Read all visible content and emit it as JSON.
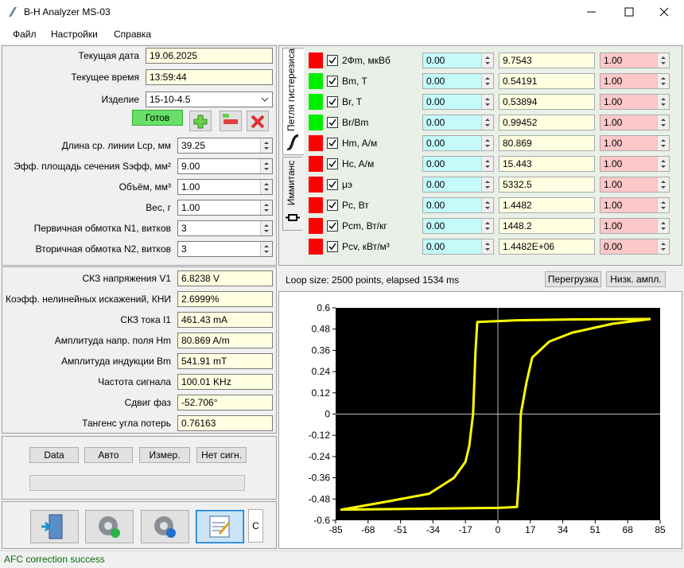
{
  "window": {
    "title": "B-H Analyzer MS-03"
  },
  "menu": [
    "Файл",
    "Настройки",
    "Справка"
  ],
  "settings": {
    "rows": [
      {
        "label": "Текущая дата",
        "value": "19.06.2025"
      },
      {
        "label": "Текущее время",
        "value": "13:59:44"
      },
      {
        "label": "Изделие",
        "value": "15-10-4.5"
      }
    ],
    "ready": "Готов",
    "spins": [
      {
        "label": "Длина ср. линии Lср, мм",
        "value": "39.25"
      },
      {
        "label": "Эфф. площадь сечения Sэфф, мм²",
        "value": "9.00"
      },
      {
        "label": "Объём, мм³",
        "value": "1.00"
      },
      {
        "label": "Вес, г",
        "value": "1.00"
      },
      {
        "label": "Первичная обмотка N1, витков",
        "value": "3"
      },
      {
        "label": "Вторичная обмотка N2, витков",
        "value": "3"
      }
    ]
  },
  "measurements": [
    {
      "label": "СКЗ напряжения V1",
      "value": "6.8238 V"
    },
    {
      "label": "Коэфф. нелинейных искажений, КНИ",
      "value": "2.6999%"
    },
    {
      "label": "СКЗ тока I1",
      "value": "461.43 mA"
    },
    {
      "label": "Амплитуда напр. поля Hm",
      "value": "80.869 A/m"
    },
    {
      "label": "Амплитуда индукции Bm",
      "value": "541.91 mT"
    },
    {
      "label": "Частота сигнала",
      "value": "100.01 KHz"
    },
    {
      "label": "Сдвиг фаз",
      "value": "-52.706°"
    },
    {
      "label": "Тангенс угла потерь",
      "value": "0.76163"
    }
  ],
  "controls": {
    "buttons": [
      "Data",
      "Авто",
      "Измер.",
      "Нет сигн."
    ],
    "c_button": "C"
  },
  "tabs": [
    "Петля гистерезиса",
    "Иммитанс"
  ],
  "loop_params": [
    {
      "color": "#ff0000",
      "label": "2Фm, мкВб",
      "min": "0.00",
      "value": "9.7543",
      "max": "1.00"
    },
    {
      "color": "#00ee00",
      "label": "Bm, T",
      "min": "0.00",
      "value": "0.54191",
      "max": "1.00"
    },
    {
      "color": "#00ee00",
      "label": "Br, T",
      "min": "0.00",
      "value": "0.53894",
      "max": "1.00"
    },
    {
      "color": "#00ee00",
      "label": "Br/Bm",
      "min": "0.00",
      "value": "0.99452",
      "max": "1.00"
    },
    {
      "color": "#ff0000",
      "label": "Hm, A/м",
      "min": "0.00",
      "value": "80.869",
      "max": "1.00"
    },
    {
      "color": "#ff0000",
      "label": "Hc, A/м",
      "min": "0.00",
      "value": "15.443",
      "max": "1.00"
    },
    {
      "color": "#ff0000",
      "label": "μэ",
      "min": "0.00",
      "value": "5332.5",
      "max": "1.00"
    },
    {
      "color": "#ff0000",
      "label": "Pc, Вт",
      "min": "0.00",
      "value": "1.4482",
      "max": "1.00"
    },
    {
      "color": "#ff0000",
      "label": "Pcm, Вт/кг",
      "min": "0.00",
      "value": "1448.2",
      "max": "1.00"
    },
    {
      "color": "#ff0000",
      "label": "Pcv, кВт/м³",
      "min": "0.00",
      "value": "1.4482E+06",
      "max": "0.00"
    }
  ],
  "loop_status": {
    "text": "Loop size: 2500 points, elapsed 1534 ms",
    "buttons": [
      "Перегрузка",
      "Низк. ампл."
    ]
  },
  "chart_data": {
    "type": "line",
    "x": [
      80,
      40,
      10,
      -10.8,
      -11.7,
      -13,
      -15,
      -17,
      -23,
      -36,
      -61,
      -82,
      -40,
      0,
      10,
      11,
      12,
      15,
      18,
      27,
      39,
      60,
      80
    ],
    "series": [
      {
        "color": "#ffff00",
        "values": [
          0.537,
          0.535,
          0.53,
          0.52,
          0.36,
          0,
          -0.18,
          -0.27,
          -0.36,
          -0.45,
          -0.5,
          -0.54,
          -0.535,
          -0.53,
          -0.525,
          -0.36,
          0,
          0.18,
          0.32,
          0.41,
          0.46,
          0.51,
          0.537
        ]
      }
    ],
    "xlim": [
      -85,
      85
    ],
    "ylim": [
      -0.6,
      0.6
    ],
    "xticks": [
      -85,
      -68,
      -51,
      -34,
      -17,
      0,
      17,
      34,
      51,
      68,
      85
    ],
    "yticks": [
      -0.6,
      -0.48,
      -0.36,
      -0.24,
      -0.12,
      0,
      0.12,
      0.24,
      0.36,
      0.48,
      0.6
    ],
    "plot_background": "#000000"
  },
  "status": "AFC correction success"
}
